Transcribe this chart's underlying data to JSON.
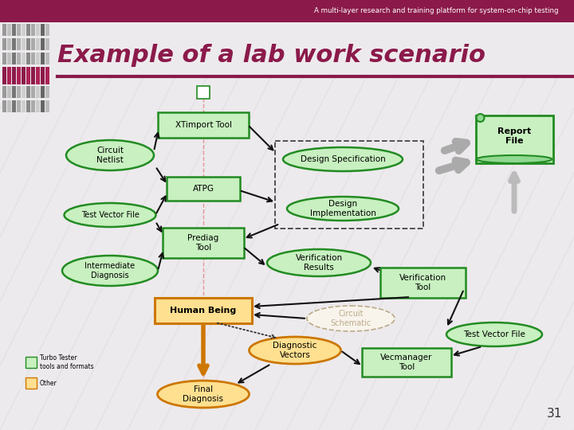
{
  "title_bar_text": "A multi-layer research and training platform for system-on-chip testing",
  "title_bar_color": "#8B1A4A",
  "slide_title": "Example of a lab work scenario",
  "slide_title_color": "#8B1A4A",
  "bg_color": "#EDEAED",
  "page_number": "31",
  "green_edge": "#228B22",
  "green_face": "#C8F0C0",
  "orange_edge": "#CC7700",
  "orange_face": "#FFE090",
  "ghost_edge": "#BBAA88",
  "ghost_face": "#F8F4EC",
  "ghost_text": "#BBAA88",
  "dashed_edge": "#444444",
  "legend_green_face": "#C8F0C0",
  "legend_orange_face": "#FFE090"
}
